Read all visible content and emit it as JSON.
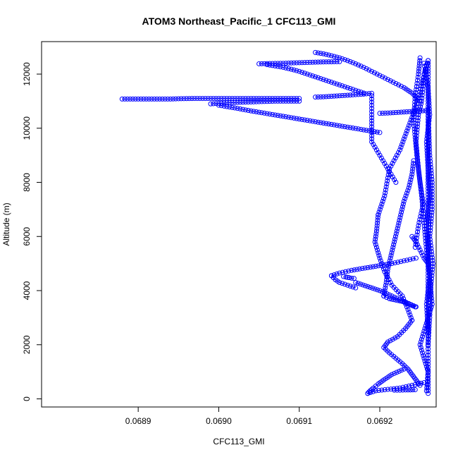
{
  "chart_data": {
    "type": "scatter",
    "title": "ATOM3 Northeast_Pacific_1 CFC113_GMI",
    "xlabel": "CFC113_GMI",
    "ylabel": "Altitude (m)",
    "xlim": [
      0.06878,
      0.06927
    ],
    "ylim": [
      -300,
      13200
    ],
    "x_ticks": [
      {
        "value": 0.0689,
        "label": "0.0689"
      },
      {
        "value": 0.069,
        "label": "0.0690"
      },
      {
        "value": 0.0691,
        "label": "0.0691"
      },
      {
        "value": 0.0692,
        "label": "0.0692"
      }
    ],
    "y_ticks": [
      {
        "value": 0,
        "label": "0"
      },
      {
        "value": 2000,
        "label": "2000"
      },
      {
        "value": 4000,
        "label": "4000"
      },
      {
        "value": 6000,
        "label": "6000"
      },
      {
        "value": 8000,
        "label": "8000"
      },
      {
        "value": 10000,
        "label": "10000"
      },
      {
        "value": 12000,
        "label": "12000"
      }
    ],
    "grid": false,
    "marker": "open-circle",
    "point_color": "#0000ff",
    "series": [
      {
        "segments": [
          {
            "x": [
              0.06926,
              0.06926,
              0.06926,
              0.06926,
              0.06926,
              0.06926,
              0.06926,
              0.06926,
              0.06926,
              0.06926,
              0.06926,
              0.06926,
              0.06926
            ],
            "y": [
              12500,
              12000,
              11000,
              10000,
              9000,
              8000,
              7000,
              6000,
              5000,
              4000,
              3000,
              1500,
              200
            ]
          },
          {
            "x": [
              0.069255,
              0.06926,
              0.069262,
              0.069258,
              0.06926,
              0.069262,
              0.069258,
              0.06926,
              0.069262,
              0.069258,
              0.06926
            ],
            "y": [
              12400,
              11500,
              10500,
              9500,
              8500,
              7500,
              6500,
              5500,
              4500,
              3500,
              2500
            ]
          },
          {
            "x": [
              0.06926,
              0.069262,
              0.069265,
              0.069265,
              0.069262,
              0.069266,
              0.069263,
              0.069262,
              0.06926
            ],
            "y": [
              10700,
              9000,
              8000,
              7000,
              6000,
              5000,
              4000,
              3000,
              2000
            ]
          }
        ]
      },
      {
        "segments": [
          {
            "x": [
              0.06926,
              0.069255,
              0.069252,
              0.069248,
              0.069245,
              0.069248,
              0.069252,
              0.069255,
              0.069258,
              0.069262,
              0.069265,
              0.06926,
              0.069255,
              0.06925,
              0.069255,
              0.06926,
              0.069258
            ],
            "y": [
              12500,
              12000,
              11000,
              10500,
              9500,
              8500,
              7500,
              6500,
              5500,
              4500,
              3500,
              3000,
              2500,
              2000,
              1500,
              1000,
              300
            ]
          },
          {
            "x": [
              0.06925,
              0.069248,
              0.069244,
              0.069242,
              0.069246,
              0.06925,
              0.069254,
              0.069248,
              0.069244
            ],
            "y": [
              12600,
              12000,
              11200,
              10300,
              9000,
              8000,
              7200,
              6400,
              5600
            ]
          }
        ]
      },
      {
        "segments": [
          {
            "x": [
              0.069258,
              0.069245,
              0.069235,
              0.069225,
              0.069212,
              0.069206,
              0.069198
            ],
            "y": [
              12300,
              10800,
              10000,
              9200,
              8500,
              7500,
              6800
            ]
          },
          {
            "x": [
              0.069198,
              0.069196,
              0.069194,
              0.0692,
              0.069206,
              0.069215,
              0.069228,
              0.069235,
              0.06924
            ],
            "y": [
              6800,
              6200,
              5800,
              5200,
              4700,
              4200,
              3800,
              3300,
              2900
            ]
          },
          {
            "x": [
              0.06924,
              0.069232,
              0.069222,
              0.06921,
              0.069205,
              0.069212,
              0.06922,
              0.069228,
              0.069235,
              0.06924,
              0.069245,
              0.06925
            ],
            "y": [
              2900,
              2600,
              2300,
              2100,
              1900,
              1700,
              1500,
              1300,
              1100,
              900,
              700,
              500
            ]
          }
        ]
      },
      {
        "segments": [
          {
            "x": [
              0.06923,
              0.069215,
              0.069205,
              0.069198,
              0.069192,
              0.069188,
              0.069185
            ],
            "y": [
              1100,
              900,
              700,
              550,
              400,
              300,
              200
            ]
          },
          {
            "x": [
              0.069185,
              0.069195,
              0.06921,
              0.069225,
              0.06924,
              0.069255
            ],
            "y": [
              200,
              300,
              350,
              400,
              500,
              600
            ]
          },
          {
            "x": [
              0.069218,
              0.069225,
              0.069232,
              0.069238,
              0.069244
            ],
            "y": [
              320,
              320,
              330,
              330,
              340
            ]
          }
        ]
      },
      {
        "segments": [
          {
            "x": [
              0.06905,
              0.06906,
              0.06907,
              0.06908,
              0.06909,
              0.0691,
              0.06911,
              0.06912,
              0.06913,
              0.06914,
              0.06915
            ],
            "y": [
              12380,
              12390,
              12395,
              12400,
              12410,
              12420,
              12430,
              12440,
              12450,
              12455,
              12460
            ]
          },
          {
            "x": [
              0.06912,
              0.06913,
              0.06914,
              0.06915,
              0.06916,
              0.06917,
              0.06918,
              0.06919,
              0.0692,
              0.06921,
              0.06922,
              0.06923,
              0.06924,
              0.06925
            ],
            "y": [
              12800,
              12750,
              12680,
              12600,
              12500,
              12380,
              12250,
              12100,
              11950,
              11800,
              11650,
              11500,
              11300,
              11000
            ]
          },
          {
            "x": [
              0.06906,
              0.06907,
              0.06908,
              0.06909,
              0.0691,
              0.06911,
              0.06912,
              0.06913,
              0.06914,
              0.06915,
              0.06916,
              0.06917,
              0.06918
            ],
            "y": [
              12350,
              12300,
              12250,
              12180,
              12100,
              12000,
              11900,
              11800,
              11700,
              11600,
              11500,
              11400,
              11300
            ]
          }
        ]
      },
      {
        "segments": [
          {
            "x": [
              0.06888,
              0.06889,
              0.0689,
              0.06891,
              0.06892,
              0.06893,
              0.06894,
              0.06895,
              0.06896,
              0.06897,
              0.06898,
              0.06899,
              0.069,
              0.06901,
              0.06902,
              0.06903,
              0.06904,
              0.06905,
              0.06906,
              0.06907,
              0.06908,
              0.06909,
              0.0691
            ],
            "y": [
              11080,
              11080,
              11080,
              11080,
              11080,
              11080,
              11080,
              11090,
              11095,
              11100,
              11100,
              11100,
              11100,
              11100,
              11100,
              11100,
              11100,
              11100,
              11100,
              11100,
              11100,
              11100,
              11100
            ]
          },
          {
            "x": [
              0.06899,
              0.069,
              0.06901,
              0.06902,
              0.06903,
              0.06904,
              0.06905,
              0.06906,
              0.06907,
              0.06908,
              0.06909,
              0.0691
            ],
            "y": [
              10900,
              10920,
              10940,
              10950,
              10960,
              10970,
              10980,
              10990,
              11000,
              11000,
              11000,
              11000
            ]
          },
          {
            "x": [
              0.06912,
              0.06913,
              0.06914,
              0.06915,
              0.06916,
              0.06917,
              0.06918,
              0.06919
            ],
            "y": [
              11150,
              11160,
              11180,
              11200,
              11220,
              11240,
              11260,
              11290
            ]
          }
        ]
      },
      {
        "segments": [
          {
            "x": [
              0.069,
              0.06902,
              0.06904,
              0.06906,
              0.06908,
              0.0691,
              0.06912,
              0.06914,
              0.06916,
              0.06918,
              0.0692
            ],
            "y": [
              10850,
              10750,
              10640,
              10540,
              10440,
              10340,
              10240,
              10140,
              10040,
              9940,
              9840
            ]
          },
          {
            "x": [
              0.0692,
              0.06921,
              0.06922,
              0.06923,
              0.06924,
              0.06925,
              0.06926
            ],
            "y": [
              10550,
              10560,
              10580,
              10600,
              10620,
              10640,
              10650
            ]
          },
          {
            "x": [
              0.06919,
              0.06919,
              0.06919,
              0.0692,
              0.06921,
              0.06922
            ],
            "y": [
              11200,
              10500,
              9500,
              9000,
              8500,
              8000
            ]
          }
        ]
      },
      {
        "segments": [
          {
            "x": [
              0.069245,
              0.06923,
              0.069215,
              0.069205,
              0.069195,
              0.069185,
              0.069175,
              0.069165,
              0.06915,
              0.06914
            ],
            "y": [
              5200,
              5100,
              5000,
              4950,
              4900,
              4850,
              4800,
              4750,
              4650,
              4550
            ]
          },
          {
            "x": [
              0.06914,
              0.069145,
              0.06915,
              0.06916,
              0.06917
            ],
            "y": [
              4550,
              4400,
              4300,
              4200,
              4100
            ]
          },
          {
            "x": [
              0.069155,
              0.069158,
              0.069162,
              0.069165,
              0.069168
            ],
            "y": [
              4520,
              4500,
              4480,
              4460,
              4450
            ]
          },
          {
            "x": [
              0.06917,
              0.069185,
              0.0692,
              0.069215,
              0.06923,
              0.069245
            ],
            "y": [
              4300,
              4150,
              4000,
              3800,
              3600,
              3400
            ]
          }
        ]
      },
      {
        "segments": [
          {
            "x": [
              0.069242,
              0.06924,
              0.069236,
              0.06923,
              0.069226,
              0.069222,
              0.069218,
              0.069214,
              0.06921,
              0.069208,
              0.069205
            ],
            "y": [
              8800,
              8300,
              7800,
              7300,
              6800,
              6300,
              5800,
              5300,
              4800,
              4300,
              3800
            ]
          },
          {
            "x": [
              0.069205,
              0.069212,
              0.06922,
              0.069228,
              0.069236,
              0.069244
            ],
            "y": [
              3800,
              3700,
              3650,
              3600,
              3500,
              3400
            ]
          },
          {
            "x": [
              0.06924,
              0.069245,
              0.06925,
              0.069255,
              0.06926
            ],
            "y": [
              6000,
              5800,
              5500,
              5200,
              5000
            ]
          }
        ]
      }
    ]
  }
}
